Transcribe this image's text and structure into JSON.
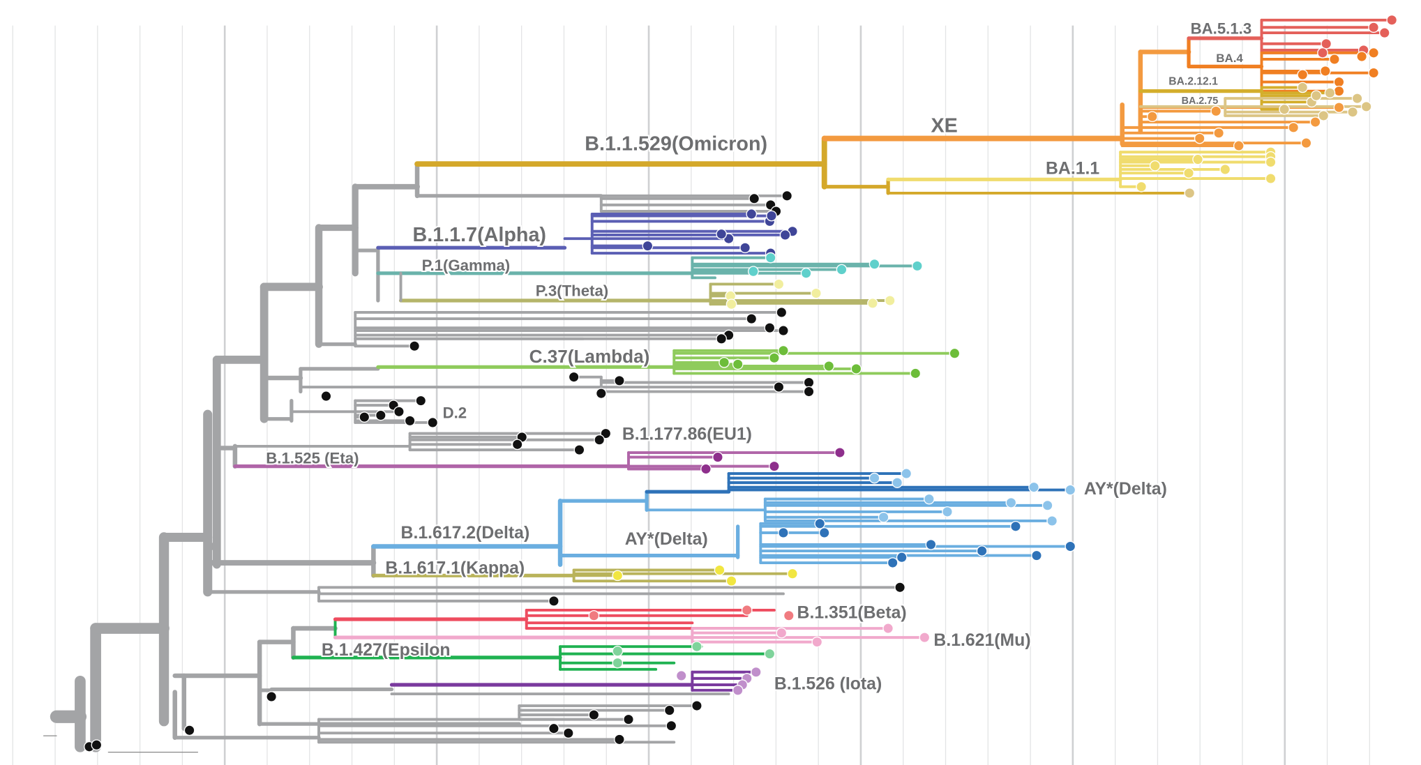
{
  "colors": {
    "backbone": "#a3a4a6",
    "omicron": "#d4a82a",
    "xe_ba2": "#f39a40",
    "ba5": "#e4605a",
    "ba4": "#f07f22",
    "ba2_12_1": "#d4ae2c",
    "ba2_75": "#dcc585",
    "ba1_1": "#f0dc6e",
    "alpha": "#5b5fb4",
    "gamma": "#6ab3ab",
    "theta": "#b5b56a",
    "lambda": "#8fcb5c",
    "eta": "#b065a8",
    "delta": "#6aaee0",
    "delta_dark": "#2e72b8",
    "kappa": "#b9b35a",
    "beta": "#ee4c5f",
    "mu": "#f1a9cc",
    "epsilon": "#1fb251",
    "iota": "#7a3a9e",
    "unlabeled_tip": "#111111"
  },
  "labels": {
    "ba5_1_3": "BA.5.1.3",
    "ba4": "BA.4",
    "ba2_12_1": "BA.2.12.1",
    "ba2_75": "BA.2.75",
    "xe": "XE",
    "omicron": "B.1.1.529(Omicron)",
    "ba1_1": "BA.1.1",
    "alpha": "B.1.1.7(Alpha)",
    "gamma": "P.1(Gamma)",
    "theta": "P.3(Theta)",
    "lambda": "C.37(Lambda)",
    "d2": "D.2",
    "eu1": "B.1.177.86(EU1)",
    "eta": "B.1.525 (Eta)",
    "ay_delta_1": "AY*(Delta)",
    "delta": "B.1.617.2(Delta)",
    "ay_delta_2": "AY*(Delta)",
    "kappa": "B.1.617.1(Kappa)",
    "beta": "B.1.351(Beta)",
    "mu": "B.1.621(Mu)",
    "epsilon": "B.1.427(Epsilon",
    "iota": "B.1.526 (Iota)"
  }
}
